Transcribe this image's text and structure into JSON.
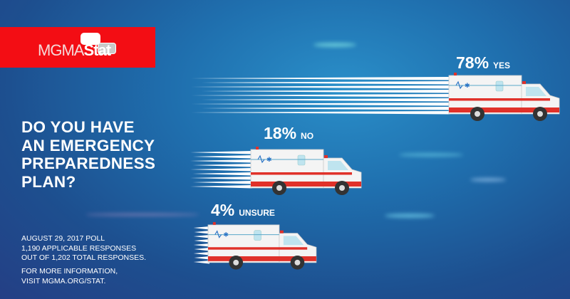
{
  "logo": {
    "text_light": "MGMA",
    "text_bold": "Stat",
    "banner_color": "#f30d14"
  },
  "question": [
    "DO YOU HAVE",
    "AN EMERGENCY",
    "PREPAREDNESS",
    "PLAN?"
  ],
  "footer": {
    "poll_lines": [
      "AUGUST 29, 2017 POLL",
      "1,190 APPLICABLE RESPONSES",
      "OUT OF 1,202 TOTAL RESPONSES."
    ],
    "info_lines": [
      "FOR MORE INFORMATION,",
      "VISIT MGMA.ORG/STAT."
    ]
  },
  "chart_data": {
    "type": "bar",
    "categories": [
      "YES",
      "NO",
      "UNSURE"
    ],
    "values": [
      78,
      18,
      4
    ],
    "value_labels": [
      "78%",
      "18%",
      "4%"
    ],
    "unit": "%",
    "marks": "ambulances with speed lines"
  }
}
